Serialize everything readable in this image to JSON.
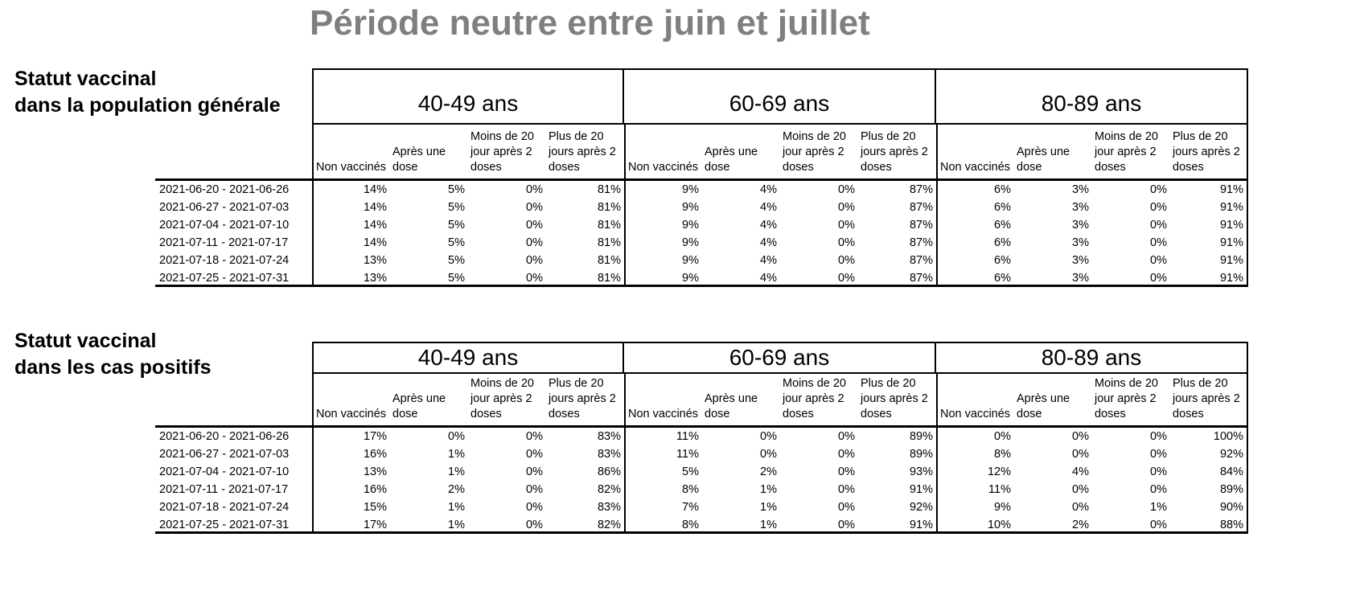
{
  "title": "Période neutre entre juin et juillet",
  "colors": {
    "title": "#7f7f7f",
    "text": "#000000",
    "border": "#000000",
    "background": "#ffffff"
  },
  "age_groups": [
    "40-49 ans",
    "60-69 ans",
    "80-89 ans"
  ],
  "sub_headers": [
    "Non vaccinés",
    "Après une dose",
    "Moins de 20 jour après 2 doses",
    "Plus de 20 jours après 2 doses"
  ],
  "tables": [
    {
      "label_line1": "Statut vaccinal",
      "label_line2": "dans la population générale",
      "rows": [
        {
          "period": "2021-06-20 - 2021-06-26",
          "values": [
            "14%",
            "5%",
            "0%",
            "81%",
            "9%",
            "4%",
            "0%",
            "87%",
            "6%",
            "3%",
            "0%",
            "91%"
          ]
        },
        {
          "period": "2021-06-27 - 2021-07-03",
          "values": [
            "14%",
            "5%",
            "0%",
            "81%",
            "9%",
            "4%",
            "0%",
            "87%",
            "6%",
            "3%",
            "0%",
            "91%"
          ]
        },
        {
          "period": "2021-07-04 - 2021-07-10",
          "values": [
            "14%",
            "5%",
            "0%",
            "81%",
            "9%",
            "4%",
            "0%",
            "87%",
            "6%",
            "3%",
            "0%",
            "91%"
          ]
        },
        {
          "period": "2021-07-11 - 2021-07-17",
          "values": [
            "14%",
            "5%",
            "0%",
            "81%",
            "9%",
            "4%",
            "0%",
            "87%",
            "6%",
            "3%",
            "0%",
            "91%"
          ]
        },
        {
          "period": "2021-07-18 - 2021-07-24",
          "values": [
            "13%",
            "5%",
            "0%",
            "81%",
            "9%",
            "4%",
            "0%",
            "87%",
            "6%",
            "3%",
            "0%",
            "91%"
          ]
        },
        {
          "period": "2021-07-25 - 2021-07-31",
          "values": [
            "13%",
            "5%",
            "0%",
            "81%",
            "9%",
            "4%",
            "0%",
            "87%",
            "6%",
            "3%",
            "0%",
            "91%"
          ]
        }
      ]
    },
    {
      "label_line1": "Statut vaccinal",
      "label_line2": "dans les cas positifs",
      "rows": [
        {
          "period": "2021-06-20 - 2021-06-26",
          "values": [
            "17%",
            "0%",
            "0%",
            "83%",
            "11%",
            "0%",
            "0%",
            "89%",
            "0%",
            "0%",
            "0%",
            "100%"
          ]
        },
        {
          "period": "2021-06-27 - 2021-07-03",
          "values": [
            "16%",
            "1%",
            "0%",
            "83%",
            "11%",
            "0%",
            "0%",
            "89%",
            "8%",
            "0%",
            "0%",
            "92%"
          ]
        },
        {
          "period": "2021-07-04 - 2021-07-10",
          "values": [
            "13%",
            "1%",
            "0%",
            "86%",
            "5%",
            "2%",
            "0%",
            "93%",
            "12%",
            "4%",
            "0%",
            "84%"
          ]
        },
        {
          "period": "2021-07-11 - 2021-07-17",
          "values": [
            "16%",
            "2%",
            "0%",
            "82%",
            "8%",
            "1%",
            "0%",
            "91%",
            "11%",
            "0%",
            "0%",
            "89%"
          ]
        },
        {
          "period": "2021-07-18 - 2021-07-24",
          "values": [
            "15%",
            "1%",
            "0%",
            "83%",
            "7%",
            "1%",
            "0%",
            "92%",
            "9%",
            "0%",
            "1%",
            "90%"
          ]
        },
        {
          "period": "2021-07-25 - 2021-07-31",
          "values": [
            "17%",
            "1%",
            "0%",
            "82%",
            "8%",
            "1%",
            "0%",
            "91%",
            "10%",
            "2%",
            "0%",
            "88%"
          ]
        }
      ]
    }
  ]
}
